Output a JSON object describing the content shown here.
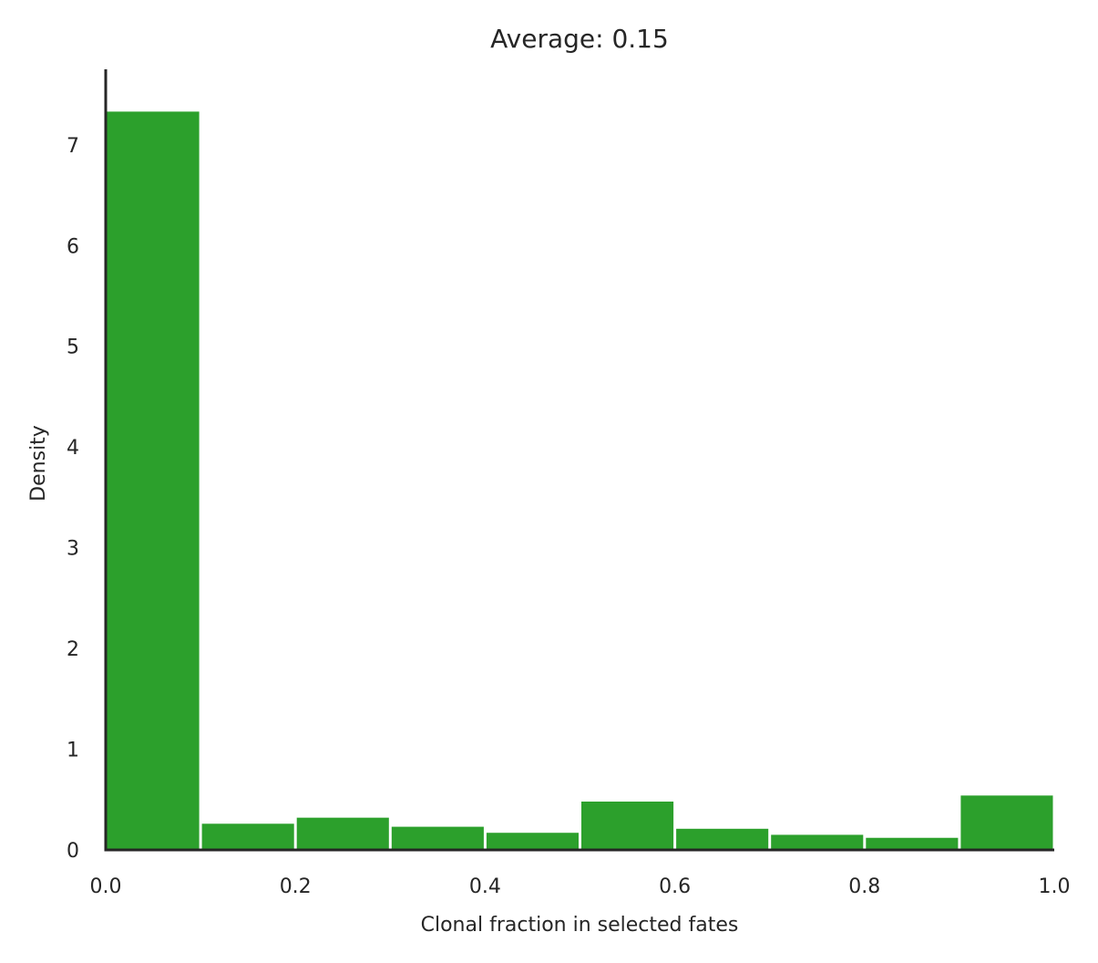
{
  "chart_data": {
    "type": "bar",
    "title": "Average: 0.15",
    "xlabel": "Clonal fraction in selected fates",
    "ylabel": "Density",
    "xlim": [
      0.0,
      1.0
    ],
    "ylim": [
      0,
      7.75
    ],
    "grid": false,
    "x_ticks": [
      "0.0",
      "0.2",
      "0.4",
      "0.6",
      "0.8",
      "1.0"
    ],
    "y_ticks": [
      "0",
      "1",
      "2",
      "3",
      "4",
      "5",
      "6",
      "7"
    ],
    "bins": [
      {
        "start": 0.0,
        "end": 0.1,
        "value": 7.33
      },
      {
        "start": 0.1,
        "end": 0.2,
        "value": 0.26
      },
      {
        "start": 0.2,
        "end": 0.3,
        "value": 0.32
      },
      {
        "start": 0.3,
        "end": 0.4,
        "value": 0.23
      },
      {
        "start": 0.4,
        "end": 0.5,
        "value": 0.17
      },
      {
        "start": 0.5,
        "end": 0.6,
        "value": 0.48
      },
      {
        "start": 0.6,
        "end": 0.7,
        "value": 0.21
      },
      {
        "start": 0.7,
        "end": 0.8,
        "value": 0.15
      },
      {
        "start": 0.8,
        "end": 0.9,
        "value": 0.12
      },
      {
        "start": 0.9,
        "end": 1.0,
        "value": 0.54
      }
    ],
    "bar_color": "#2ca02c",
    "axis_color": "#262626"
  }
}
